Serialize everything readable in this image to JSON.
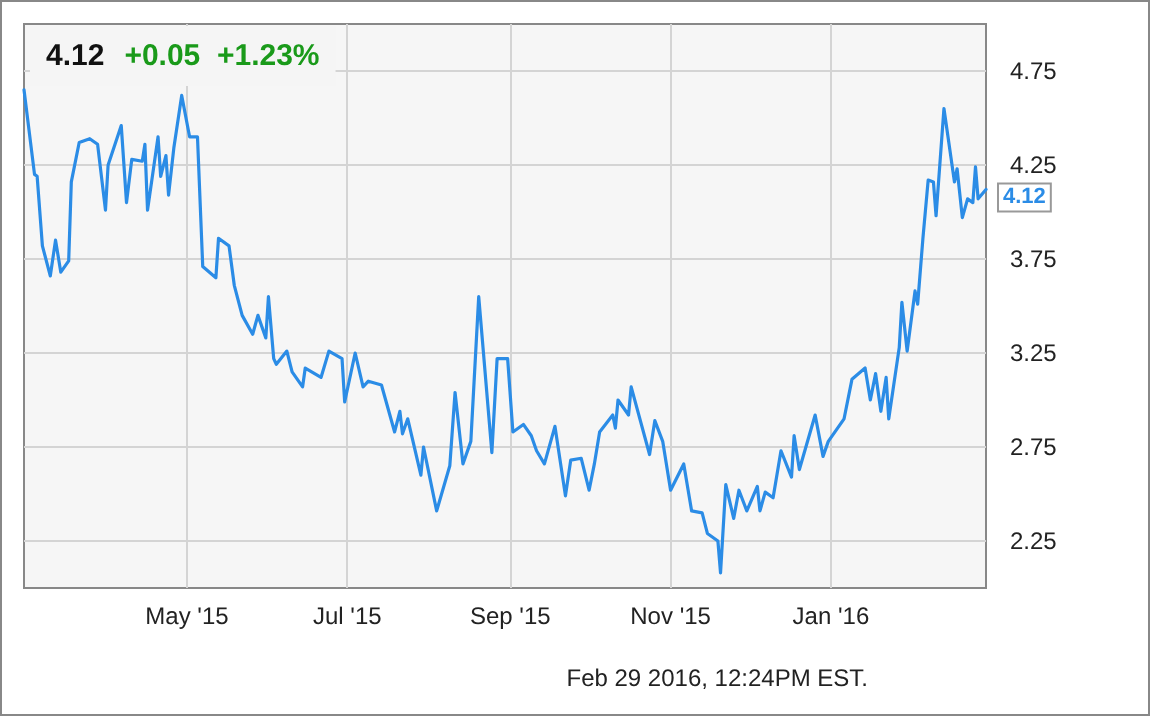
{
  "chart_data": {
    "type": "line",
    "title": "4.12",
    "subtitle": "+0.05  +1.23%",
    "x": [
      "2015-02-28",
      "2015-03-04",
      "2015-03-05",
      "2015-03-07",
      "2015-03-10",
      "2015-03-12",
      "2015-03-14",
      "2015-03-17",
      "2015-03-18",
      "2015-03-21",
      "2015-03-25",
      "2015-03-28",
      "2015-03-31",
      "2015-04-01",
      "2015-04-06",
      "2015-04-08",
      "2015-04-10",
      "2015-04-14",
      "2015-04-15",
      "2015-04-16",
      "2015-04-20",
      "2015-04-21",
      "2015-04-23",
      "2015-04-24",
      "2015-04-26",
      "2015-04-29",
      "2015-05-02",
      "2015-05-05",
      "2015-05-07",
      "2015-05-12",
      "2015-05-13",
      "2015-05-17",
      "2015-05-19",
      "2015-05-22",
      "2015-05-26",
      "2015-05-28",
      "2015-05-31",
      "2015-06-01",
      "2015-06-03",
      "2015-06-04",
      "2015-06-08",
      "2015-06-10",
      "2015-06-14",
      "2015-06-15",
      "2015-06-21",
      "2015-06-24",
      "2015-06-29",
      "2015-06-30",
      "2015-07-04",
      "2015-07-07",
      "2015-07-09",
      "2015-07-14",
      "2015-07-19",
      "2015-07-21",
      "2015-07-22",
      "2015-07-24",
      "2015-07-29",
      "2015-07-30",
      "2015-08-04",
      "2015-08-09",
      "2015-08-11",
      "2015-08-14",
      "2015-08-17",
      "2015-08-20",
      "2015-08-25",
      "2015-08-27",
      "2015-08-31",
      "2015-09-02",
      "2015-09-06",
      "2015-09-09",
      "2015-09-11",
      "2015-09-14",
      "2015-09-18",
      "2015-09-22",
      "2015-09-24",
      "2015-09-28",
      "2015-10-01",
      "2015-10-03",
      "2015-10-05",
      "2015-10-10",
      "2015-10-11",
      "2015-10-12",
      "2015-10-16",
      "2015-10-17",
      "2015-10-24",
      "2015-10-26",
      "2015-10-29",
      "2015-11-01",
      "2015-11-06",
      "2015-11-09",
      "2015-11-13",
      "2015-11-15",
      "2015-11-19",
      "2015-11-20",
      "2015-11-22",
      "2015-11-25",
      "2015-11-27",
      "2015-11-30",
      "2015-12-04",
      "2015-12-05",
      "2015-12-07",
      "2015-12-10",
      "2015-12-13",
      "2015-12-17",
      "2015-12-18",
      "2015-12-20",
      "2015-12-26",
      "2015-12-29",
      "2015-12-31",
      "2016-01-06",
      "2016-01-09",
      "2016-01-14",
      "2016-01-16",
      "2016-01-18",
      "2016-01-20",
      "2016-01-22",
      "2016-01-23",
      "2016-01-27",
      "2016-01-28",
      "2016-01-30",
      "2016-02-02",
      "2016-02-03",
      "2016-02-05",
      "2016-02-07",
      "2016-02-09",
      "2016-02-10",
      "2016-02-13",
      "2016-02-17",
      "2016-02-18",
      "2016-02-20",
      "2016-02-22",
      "2016-02-24",
      "2016-02-25",
      "2016-02-26",
      "2016-02-29"
    ],
    "series": [
      {
        "color": "#2b8ce6",
        "values": [
          4.65,
          4.2,
          4.19,
          3.82,
          3.66,
          3.85,
          3.68,
          3.74,
          4.16,
          4.37,
          4.39,
          4.36,
          4.01,
          4.25,
          4.46,
          4.05,
          4.28,
          4.27,
          4.36,
          4.01,
          4.4,
          4.19,
          4.3,
          4.09,
          4.34,
          4.62,
          4.4,
          4.4,
          3.71,
          3.65,
          3.86,
          3.82,
          3.61,
          3.45,
          3.35,
          3.45,
          3.33,
          3.55,
          3.22,
          3.19,
          3.26,
          3.15,
          3.07,
          3.17,
          3.12,
          3.26,
          3.22,
          2.99,
          3.25,
          3.07,
          3.1,
          3.08,
          2.83,
          2.94,
          2.82,
          2.9,
          2.6,
          2.75,
          2.41,
          2.65,
          3.04,
          2.66,
          2.78,
          3.55,
          2.72,
          3.22,
          3.22,
          2.83,
          2.87,
          2.81,
          2.73,
          2.66,
          2.86,
          2.49,
          2.68,
          2.69,
          2.52,
          2.66,
          2.83,
          2.92,
          2.85,
          3.0,
          2.92,
          3.07,
          2.71,
          2.89,
          2.78,
          2.52,
          2.66,
          2.41,
          2.4,
          2.29,
          2.25,
          2.08,
          2.55,
          2.37,
          2.52,
          2.41,
          2.54,
          2.41,
          2.51,
          2.48,
          2.73,
          2.59,
          2.81,
          2.63,
          2.92,
          2.7,
          2.78,
          2.9,
          3.11,
          3.17,
          3.0,
          3.14,
          2.94,
          3.12,
          2.9,
          3.28,
          3.52,
          3.26,
          3.58,
          3.51,
          3.86,
          4.17,
          4.16,
          3.98,
          4.55,
          4.16,
          4.23,
          3.97,
          4.07,
          4.05,
          4.24,
          4.07,
          4.12
        ]
      }
    ],
    "xlim": [
      "2015-02-28",
      "2016-02-29"
    ],
    "xticks": [
      {
        "value": "2015-05-01",
        "label": "May '15"
      },
      {
        "value": "2015-07-01",
        "label": "Jul '15"
      },
      {
        "value": "2015-09-01",
        "label": "Sep '15"
      },
      {
        "value": "2015-11-01",
        "label": "Nov '15"
      },
      {
        "value": "2016-01-01",
        "label": "Jan '16"
      }
    ],
    "ylim": [
      2.0,
      5.0
    ],
    "yticks": [
      2.25,
      2.75,
      3.25,
      3.75,
      4.25,
      4.75
    ],
    "grid": true,
    "marker": "none",
    "line_style": "solid",
    "annotations": [
      {
        "text": "4.12",
        "x": "2016-02-29",
        "y": 4.12
      },
      "Feb 29 2016, 12:24PM EST."
    ]
  }
}
